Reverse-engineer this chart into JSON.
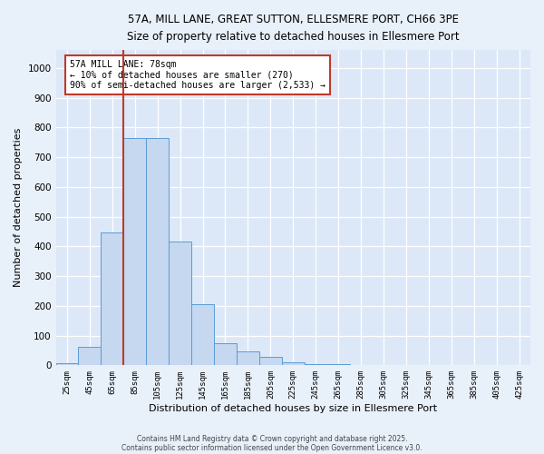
{
  "title_line1": "57A, MILL LANE, GREAT SUTTON, ELLESMERE PORT, CH66 3PE",
  "title_line2": "Size of property relative to detached houses in Ellesmere Port",
  "xlabel": "Distribution of detached houses by size in Ellesmere Port",
  "ylabel": "Number of detached properties",
  "categories": [
    "25sqm",
    "45sqm",
    "65sqm",
    "85sqm",
    "105sqm",
    "125sqm",
    "145sqm",
    "165sqm",
    "185sqm",
    "205sqm",
    "225sqm",
    "245sqm",
    "265sqm",
    "285sqm",
    "305sqm",
    "325sqm",
    "345sqm",
    "365sqm",
    "385sqm",
    "405sqm",
    "425sqm"
  ],
  "bar_values": [
    8,
    63,
    447,
    765,
    765,
    415,
    205,
    75,
    48,
    28,
    10,
    5,
    3,
    0,
    0,
    0,
    0,
    0,
    0,
    0,
    0
  ],
  "bar_color": "#c5d8f0",
  "bar_edge_color": "#5b9bd5",
  "vline_color": "#c0392b",
  "ylim": [
    0,
    1060
  ],
  "yticks": [
    0,
    100,
    200,
    300,
    400,
    500,
    600,
    700,
    800,
    900,
    1000
  ],
  "annotation_title": "57A MILL LANE: 78sqm",
  "annotation_line1": "← 10% of detached houses are smaller (270)",
  "annotation_line2": "90% of semi-detached houses are larger (2,533) →",
  "annotation_box_facecolor": "#ffffff",
  "annotation_box_edgecolor": "#c0392b",
  "bg_color": "#dce8f8",
  "fig_bg_color": "#e8f0fa",
  "footnote1": "Contains HM Land Registry data © Crown copyright and database right 2025.",
  "footnote2": "Contains public sector information licensed under the Open Government Licence v3.0."
}
